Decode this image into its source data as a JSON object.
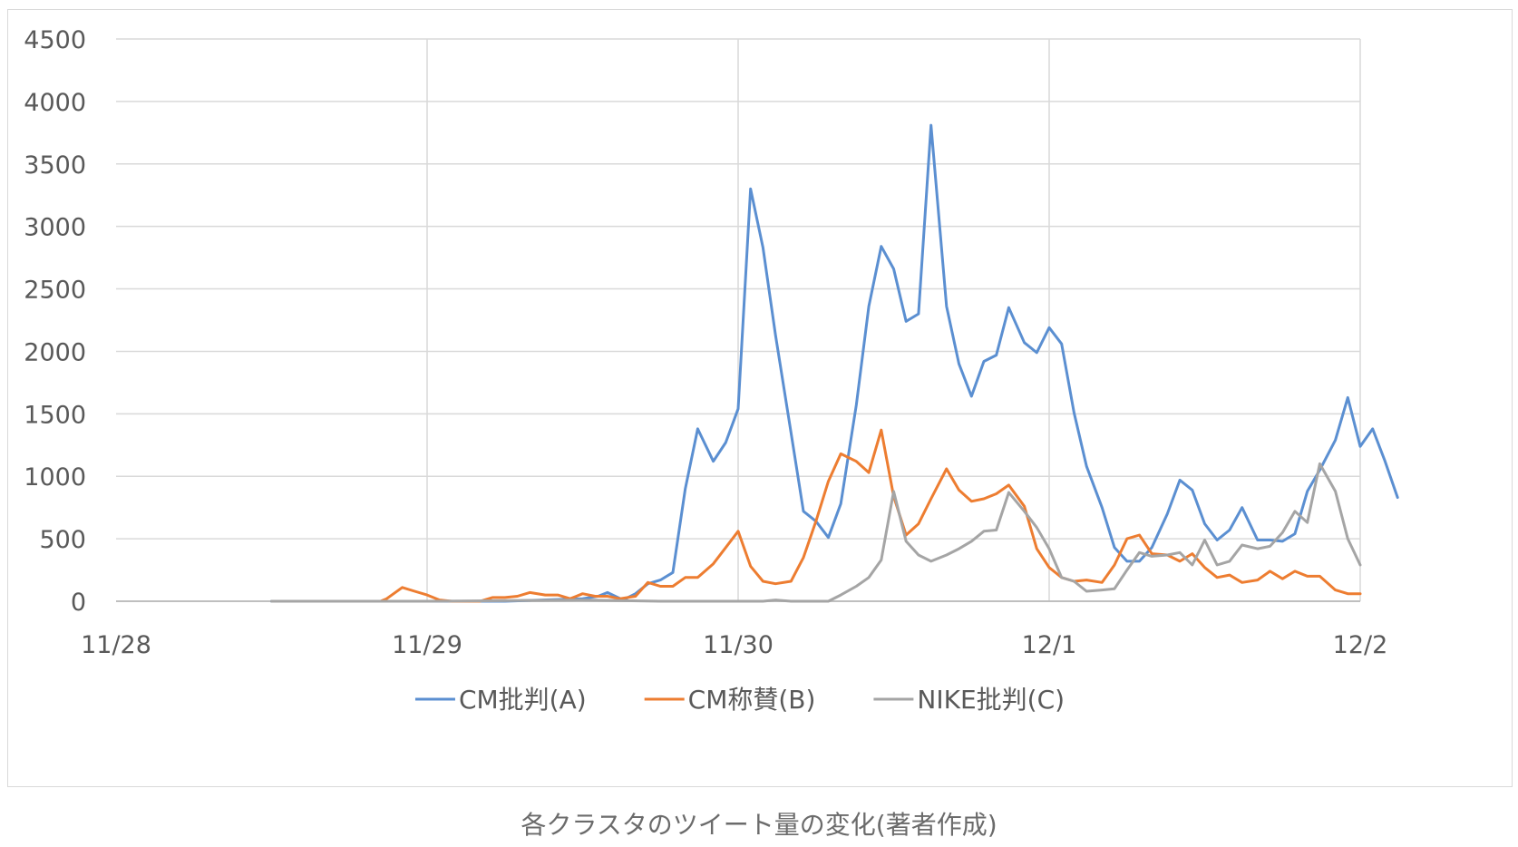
{
  "caption": "各クラスタのツイート量の変化(著者作成)",
  "chart_data": {
    "type": "line",
    "x_type": "date",
    "x_ticks": [
      "11/28",
      "11/29",
      "11/30",
      "12/1",
      "12/2"
    ],
    "ylim": [
      0,
      4500
    ],
    "y_ticks": [
      "0",
      "500",
      "1000",
      "1500",
      "2000",
      "2500",
      "3000",
      "3500",
      "4000",
      "4500"
    ],
    "grid": true,
    "legend_position": "bottom",
    "series": [
      {
        "name": "CM批判(A)",
        "color": "#5b8fd1",
        "points": [
          [
            0.5,
            0
          ],
          [
            0.75,
            0
          ],
          [
            1.25,
            0
          ],
          [
            1.5,
            20
          ],
          [
            1.55,
            40
          ],
          [
            1.58,
            70
          ],
          [
            1.63,
            10
          ],
          [
            1.67,
            60
          ],
          [
            1.71,
            140
          ],
          [
            1.75,
            170
          ],
          [
            1.79,
            230
          ],
          [
            1.83,
            900
          ],
          [
            1.87,
            1380
          ],
          [
            1.92,
            1120
          ],
          [
            1.96,
            1270
          ],
          [
            2.0,
            1540
          ],
          [
            2.04,
            3300
          ],
          [
            2.08,
            2830
          ],
          [
            2.12,
            2130
          ],
          [
            2.17,
            1350
          ],
          [
            2.21,
            720
          ],
          [
            2.25,
            640
          ],
          [
            2.29,
            510
          ],
          [
            2.33,
            780
          ],
          [
            2.38,
            1570
          ],
          [
            2.42,
            2360
          ],
          [
            2.46,
            2840
          ],
          [
            2.5,
            2660
          ],
          [
            2.54,
            2240
          ],
          [
            2.58,
            2300
          ],
          [
            2.62,
            3810
          ],
          [
            2.67,
            2360
          ],
          [
            2.71,
            1900
          ],
          [
            2.75,
            1640
          ],
          [
            2.79,
            1920
          ],
          [
            2.83,
            1970
          ],
          [
            2.87,
            2350
          ],
          [
            2.92,
            2070
          ],
          [
            2.96,
            1990
          ],
          [
            3.0,
            2190
          ],
          [
            3.04,
            2060
          ],
          [
            3.08,
            1510
          ],
          [
            3.12,
            1080
          ],
          [
            3.17,
            750
          ],
          [
            3.21,
            430
          ],
          [
            3.25,
            320
          ],
          [
            3.29,
            320
          ],
          [
            3.33,
            430
          ],
          [
            3.38,
            700
          ],
          [
            3.42,
            970
          ],
          [
            3.46,
            890
          ],
          [
            3.5,
            620
          ],
          [
            3.54,
            490
          ],
          [
            3.58,
            570
          ],
          [
            3.62,
            750
          ],
          [
            3.67,
            490
          ],
          [
            3.71,
            490
          ],
          [
            3.75,
            480
          ],
          [
            3.79,
            540
          ],
          [
            3.83,
            880
          ],
          [
            3.87,
            1050
          ],
          [
            3.92,
            1290
          ],
          [
            3.96,
            1630
          ],
          [
            4.0,
            1240
          ],
          [
            4.04,
            1380
          ],
          [
            4.08,
            1120
          ],
          [
            4.12,
            830
          ]
        ]
      },
      {
        "name": "CM称賛(B)",
        "color": "#ed7d31",
        "points": [
          [
            0.85,
            0
          ],
          [
            0.87,
            20
          ],
          [
            0.92,
            110
          ],
          [
            0.96,
            80
          ],
          [
            1.0,
            50
          ],
          [
            1.04,
            10
          ],
          [
            1.08,
            0
          ],
          [
            1.17,
            0
          ],
          [
            1.21,
            30
          ],
          [
            1.25,
            30
          ],
          [
            1.29,
            40
          ],
          [
            1.33,
            70
          ],
          [
            1.38,
            50
          ],
          [
            1.42,
            50
          ],
          [
            1.46,
            20
          ],
          [
            1.5,
            60
          ],
          [
            1.54,
            40
          ],
          [
            1.58,
            40
          ],
          [
            1.62,
            20
          ],
          [
            1.67,
            40
          ],
          [
            1.71,
            150
          ],
          [
            1.75,
            120
          ],
          [
            1.79,
            120
          ],
          [
            1.83,
            190
          ],
          [
            1.87,
            190
          ],
          [
            1.92,
            300
          ],
          [
            1.96,
            430
          ],
          [
            2.0,
            560
          ],
          [
            2.04,
            280
          ],
          [
            2.08,
            160
          ],
          [
            2.12,
            140
          ],
          [
            2.17,
            160
          ],
          [
            2.21,
            350
          ],
          [
            2.25,
            640
          ],
          [
            2.29,
            960
          ],
          [
            2.33,
            1180
          ],
          [
            2.38,
            1120
          ],
          [
            2.42,
            1030
          ],
          [
            2.46,
            1370
          ],
          [
            2.5,
            840
          ],
          [
            2.54,
            530
          ],
          [
            2.58,
            620
          ],
          [
            2.62,
            820
          ],
          [
            2.67,
            1060
          ],
          [
            2.71,
            890
          ],
          [
            2.75,
            800
          ],
          [
            2.79,
            820
          ],
          [
            2.83,
            860
          ],
          [
            2.87,
            930
          ],
          [
            2.92,
            760
          ],
          [
            2.96,
            420
          ],
          [
            3.0,
            270
          ],
          [
            3.04,
            190
          ],
          [
            3.08,
            160
          ],
          [
            3.12,
            170
          ],
          [
            3.17,
            150
          ],
          [
            3.21,
            290
          ],
          [
            3.25,
            500
          ],
          [
            3.29,
            530
          ],
          [
            3.33,
            380
          ],
          [
            3.38,
            370
          ],
          [
            3.42,
            320
          ],
          [
            3.46,
            380
          ],
          [
            3.5,
            270
          ],
          [
            3.54,
            190
          ],
          [
            3.58,
            210
          ],
          [
            3.62,
            150
          ],
          [
            3.67,
            170
          ],
          [
            3.71,
            240
          ],
          [
            3.75,
            180
          ],
          [
            3.79,
            240
          ],
          [
            3.83,
            200
          ],
          [
            3.87,
            200
          ],
          [
            3.92,
            90
          ],
          [
            3.96,
            60
          ],
          [
            4.0,
            60
          ]
        ]
      },
      {
        "name": "NIKE批判(C)",
        "color": "#a5a5a5",
        "points": [
          [
            0.5,
            0
          ],
          [
            1.0,
            0
          ],
          [
            1.5,
            10
          ],
          [
            1.75,
            0
          ],
          [
            2.0,
            0
          ],
          [
            2.08,
            0
          ],
          [
            2.12,
            10
          ],
          [
            2.17,
            0
          ],
          [
            2.29,
            0
          ],
          [
            2.33,
            50
          ],
          [
            2.38,
            120
          ],
          [
            2.42,
            190
          ],
          [
            2.46,
            330
          ],
          [
            2.5,
            880
          ],
          [
            2.54,
            480
          ],
          [
            2.58,
            370
          ],
          [
            2.62,
            320
          ],
          [
            2.67,
            370
          ],
          [
            2.71,
            420
          ],
          [
            2.75,
            480
          ],
          [
            2.79,
            560
          ],
          [
            2.83,
            570
          ],
          [
            2.87,
            870
          ],
          [
            2.92,
            720
          ],
          [
            2.96,
            590
          ],
          [
            3.0,
            420
          ],
          [
            3.04,
            190
          ],
          [
            3.08,
            160
          ],
          [
            3.12,
            80
          ],
          [
            3.17,
            90
          ],
          [
            3.21,
            100
          ],
          [
            3.25,
            250
          ],
          [
            3.29,
            390
          ],
          [
            3.33,
            360
          ],
          [
            3.38,
            370
          ],
          [
            3.42,
            390
          ],
          [
            3.46,
            290
          ],
          [
            3.5,
            490
          ],
          [
            3.54,
            290
          ],
          [
            3.58,
            320
          ],
          [
            3.62,
            450
          ],
          [
            3.67,
            420
          ],
          [
            3.71,
            440
          ],
          [
            3.75,
            550
          ],
          [
            3.79,
            720
          ],
          [
            3.83,
            630
          ],
          [
            3.87,
            1100
          ],
          [
            3.92,
            880
          ],
          [
            3.96,
            500
          ],
          [
            4.0,
            290
          ]
        ]
      }
    ]
  }
}
